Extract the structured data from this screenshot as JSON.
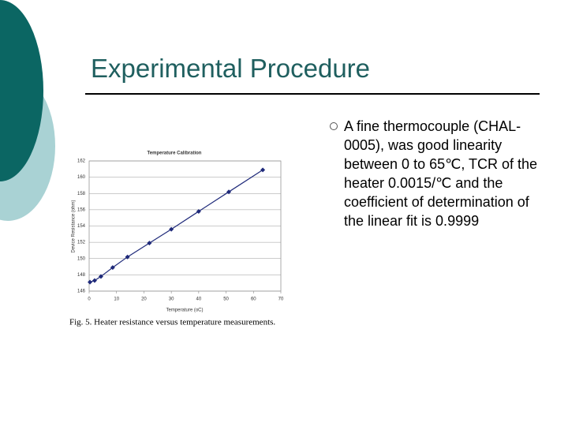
{
  "header": {
    "title": "Experimental Procedure"
  },
  "bullets": [
    "A fine thermocouple (CHAL-0005), was good linearity between 0 to 65℃, TCR of the heater 0.0015/℃ and the coefficient of determination of the linear fit is 0.9999"
  ],
  "figure": {
    "caption": "Fig. 5. Heater resistance versus temperature measurements.",
    "chart_data": {
      "type": "line",
      "title": "Temperature Calibration",
      "x_label": "Temperature (oC)",
      "y_label": "Device Resistance (ohm)",
      "x": [
        0.3,
        2,
        4.3,
        8.6,
        14,
        22,
        30,
        40,
        51,
        63.4
      ],
      "values": [
        147.1,
        147.3,
        147.8,
        148.9,
        150.2,
        151.9,
        153.6,
        155.8,
        158.2,
        160.9
      ],
      "color": "#1f2a7a",
      "xlim": [
        0,
        70
      ],
      "ylim": [
        146,
        162
      ],
      "xticks": [
        0,
        10,
        20,
        30,
        40,
        50,
        60,
        70
      ],
      "yticks": [
        146,
        148,
        150,
        152,
        154,
        156,
        158,
        160,
        162
      ],
      "grid": true
    }
  }
}
